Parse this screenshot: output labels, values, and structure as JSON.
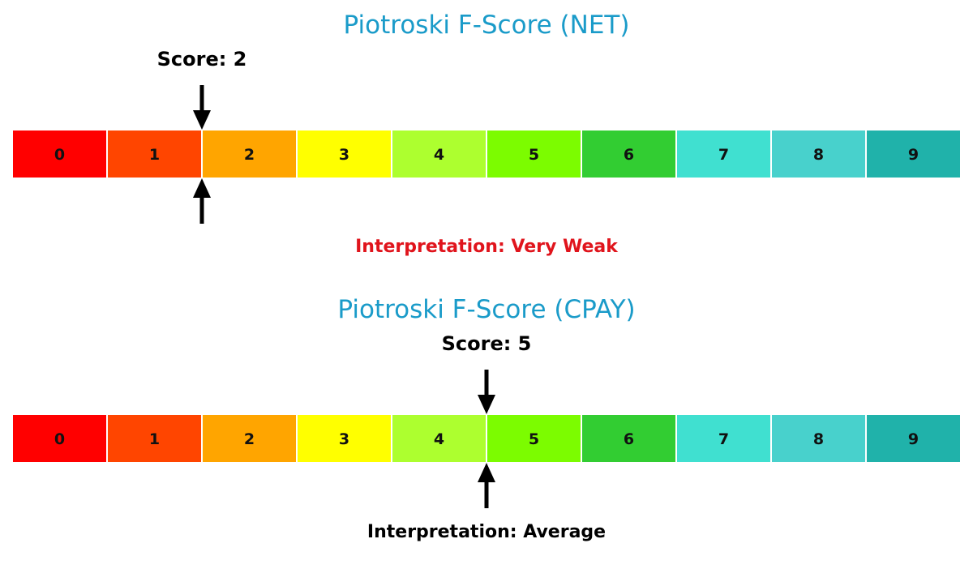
{
  "chart_data": [
    {
      "type": "gauge",
      "title": "Piotroski F-Score (NET)",
      "score_label": "Score: 2",
      "score": 2,
      "interpretation": "Interpretation: Very Weak",
      "interpretation_color": "#e0141c",
      "categories": [
        "0",
        "1",
        "2",
        "3",
        "4",
        "5",
        "6",
        "7",
        "8",
        "9"
      ]
    },
    {
      "type": "gauge",
      "title": "Piotroski F-Score (CPAY)",
      "score_label": "Score: 5",
      "score": 5,
      "interpretation": "Interpretation: Average",
      "interpretation_color": "#000000",
      "categories": [
        "0",
        "1",
        "2",
        "3",
        "4",
        "5",
        "6",
        "7",
        "8",
        "9"
      ]
    }
  ],
  "colors": {
    "title": "#1a9bc9",
    "segments": [
      "#ff0000",
      "#ff4500",
      "#ffa500",
      "#ffff00",
      "#adff2f",
      "#7cfc00",
      "#32cd32",
      "#40e0d0",
      "#48d1cc",
      "#20b2aa"
    ]
  }
}
